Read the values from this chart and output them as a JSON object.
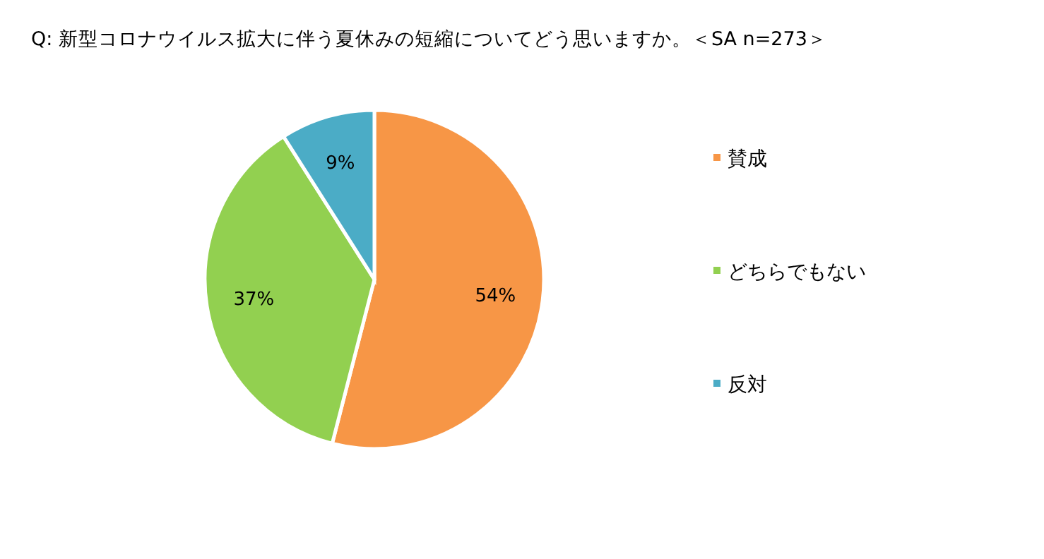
{
  "chart_data": {
    "type": "pie",
    "title": "Q: 新型コロナウイルス拡大に伴う夏休みの短縮についてどう思いますか。＜SA n=273＞",
    "categories": [
      "賛成",
      "どちらでもない",
      "反対"
    ],
    "values": [
      54,
      37,
      9
    ],
    "colors": [
      "#f79646",
      "#92d050",
      "#4bacc6"
    ],
    "value_labels": [
      "54%",
      "37%",
      "9%"
    ],
    "legend": "right"
  }
}
